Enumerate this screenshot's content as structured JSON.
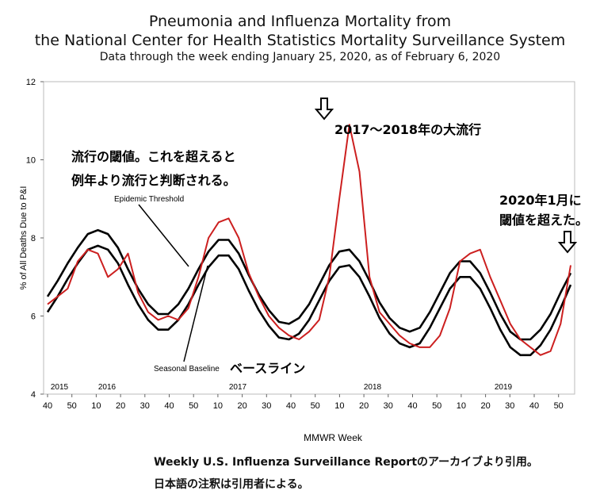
{
  "header": {
    "title_line1": "Pneumonia and Influenza Mortality from",
    "title_line2": "the National Center for Health Statistics Mortality Surveillance System",
    "subtitle": "Data through the week ending January 25, 2020, as of February 6, 2020"
  },
  "chart_data": {
    "type": "line",
    "ylabel": "% of All Deaths Due to P&I",
    "xlabel": "MMWR Week",
    "ylim": [
      4,
      12
    ],
    "yticks": [
      "4",
      "6",
      "8",
      "10",
      "12"
    ],
    "x_start_week_label": "40",
    "xticks": [
      "40",
      "50",
      "10",
      "20",
      "30",
      "40",
      "50",
      "10",
      "20",
      "30",
      "40",
      "50",
      "10",
      "20",
      "30",
      "40",
      "50",
      "10",
      "20",
      "30",
      "40",
      "50"
    ],
    "year_labels": [
      "2015",
      "2016",
      "2017",
      "2018",
      "2019"
    ],
    "series": [
      {
        "name": "Epidemic Threshold",
        "color": "#000000",
        "values": [
          6.5,
          6.9,
          7.35,
          7.75,
          8.1,
          8.2,
          8.1,
          7.75,
          7.2,
          6.7,
          6.3,
          6.05,
          6.05,
          6.3,
          6.7,
          7.2,
          7.65,
          7.95,
          7.95,
          7.6,
          7.05,
          6.55,
          6.15,
          5.85,
          5.8,
          5.95,
          6.3,
          6.8,
          7.3,
          7.65,
          7.7,
          7.4,
          6.9,
          6.35,
          5.95,
          5.7,
          5.6,
          5.7,
          6.1,
          6.6,
          7.1,
          7.4,
          7.4,
          7.1,
          6.6,
          6.05,
          5.6,
          5.4,
          5.4,
          5.65,
          6.05,
          6.6,
          7.1
        ]
      },
      {
        "name": "Seasonal Baseline",
        "color": "#000000",
        "values": [
          6.1,
          6.5,
          6.95,
          7.35,
          7.7,
          7.8,
          7.7,
          7.35,
          6.8,
          6.3,
          5.9,
          5.65,
          5.65,
          5.9,
          6.3,
          6.8,
          7.25,
          7.55,
          7.55,
          7.2,
          6.65,
          6.15,
          5.75,
          5.45,
          5.4,
          5.55,
          5.9,
          6.4,
          6.9,
          7.25,
          7.3,
          7.0,
          6.5,
          5.95,
          5.55,
          5.3,
          5.2,
          5.3,
          5.7,
          6.2,
          6.7,
          7.0,
          7.0,
          6.7,
          6.2,
          5.65,
          5.2,
          5.0,
          5.0,
          5.25,
          5.65,
          6.2,
          6.8
        ]
      },
      {
        "name": "",
        "color": "#cc1f1f",
        "values": [
          6.3,
          6.5,
          6.7,
          7.4,
          7.7,
          7.6,
          7.0,
          7.2,
          7.6,
          6.6,
          6.1,
          5.9,
          6.0,
          5.9,
          6.2,
          7.0,
          8.0,
          8.4,
          8.5,
          8.0,
          7.1,
          6.5,
          6.0,
          5.7,
          5.5,
          5.4,
          5.6,
          5.9,
          7.0,
          9.0,
          10.9,
          9.7,
          7.0,
          6.1,
          5.8,
          5.5,
          5.3,
          5.2,
          5.2,
          5.5,
          6.2,
          7.4,
          7.6,
          7.7,
          7.0,
          6.4,
          5.8,
          5.4,
          5.2,
          5.0,
          5.1,
          5.8,
          7.3
        ]
      }
    ]
  },
  "annotations": {
    "threshold_label": "Epidemic Threshold",
    "baseline_label": "Seasonal Baseline",
    "threshold_note_line1": "流行の閾値。これを超えると",
    "threshold_note_line2": "例年より流行と判断される。",
    "peak_note": "2017〜2018年の大流行",
    "baseline_note": "ベースライン",
    "jan2020_note_line1": "2020年1月に",
    "jan2020_note_line2": "閾値を超えた。"
  },
  "source": {
    "line1": "Weekly U.S. Influenza Surveillance Reportのアーカイブより引用。",
    "line2": "日本語の注釈は引用者による。"
  }
}
